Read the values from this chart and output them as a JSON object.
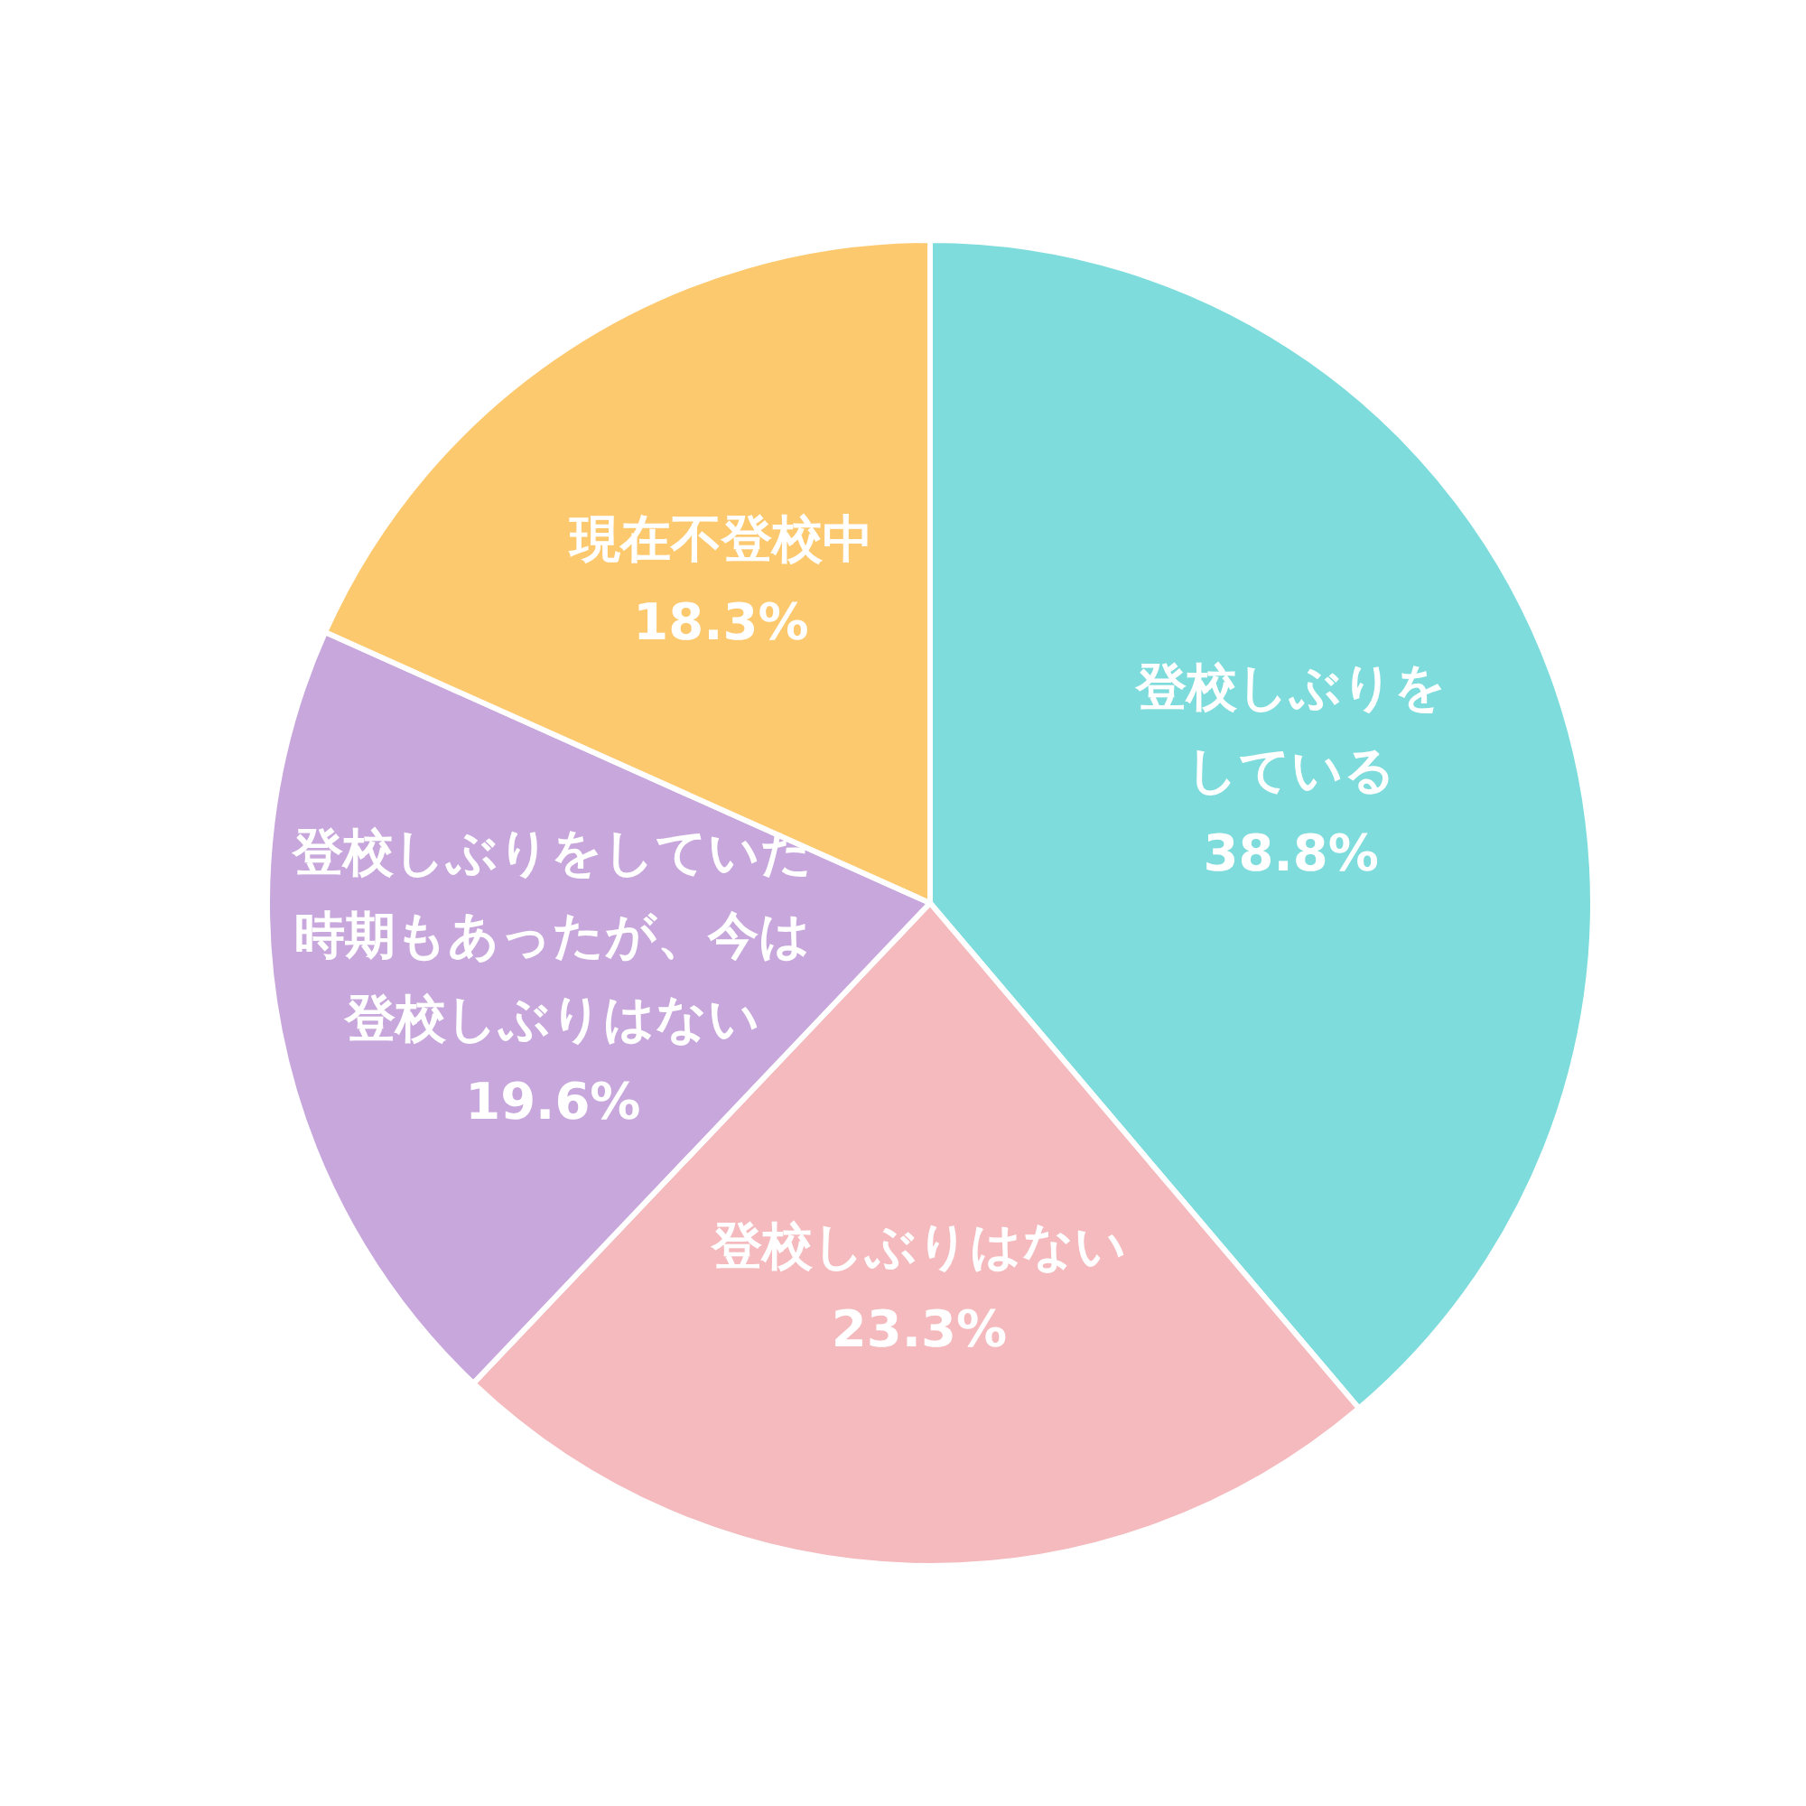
{
  "chart_data": {
    "type": "pie",
    "categories": [
      "登校しぶりをしている",
      "登校しぶりはない",
      "登校しぶりをしていた時期もあったが、今は登校しぶりはない",
      "現在不登校中"
    ],
    "values": [
      38.8,
      23.3,
      19.6,
      18.3
    ],
    "value_labels": [
      "38.8%",
      "23.3%",
      "19.6%",
      "18.3%"
    ],
    "colors": [
      "#7fdcdc",
      "#f4babd",
      "#c8a8dc",
      "#fdc96f"
    ]
  }
}
